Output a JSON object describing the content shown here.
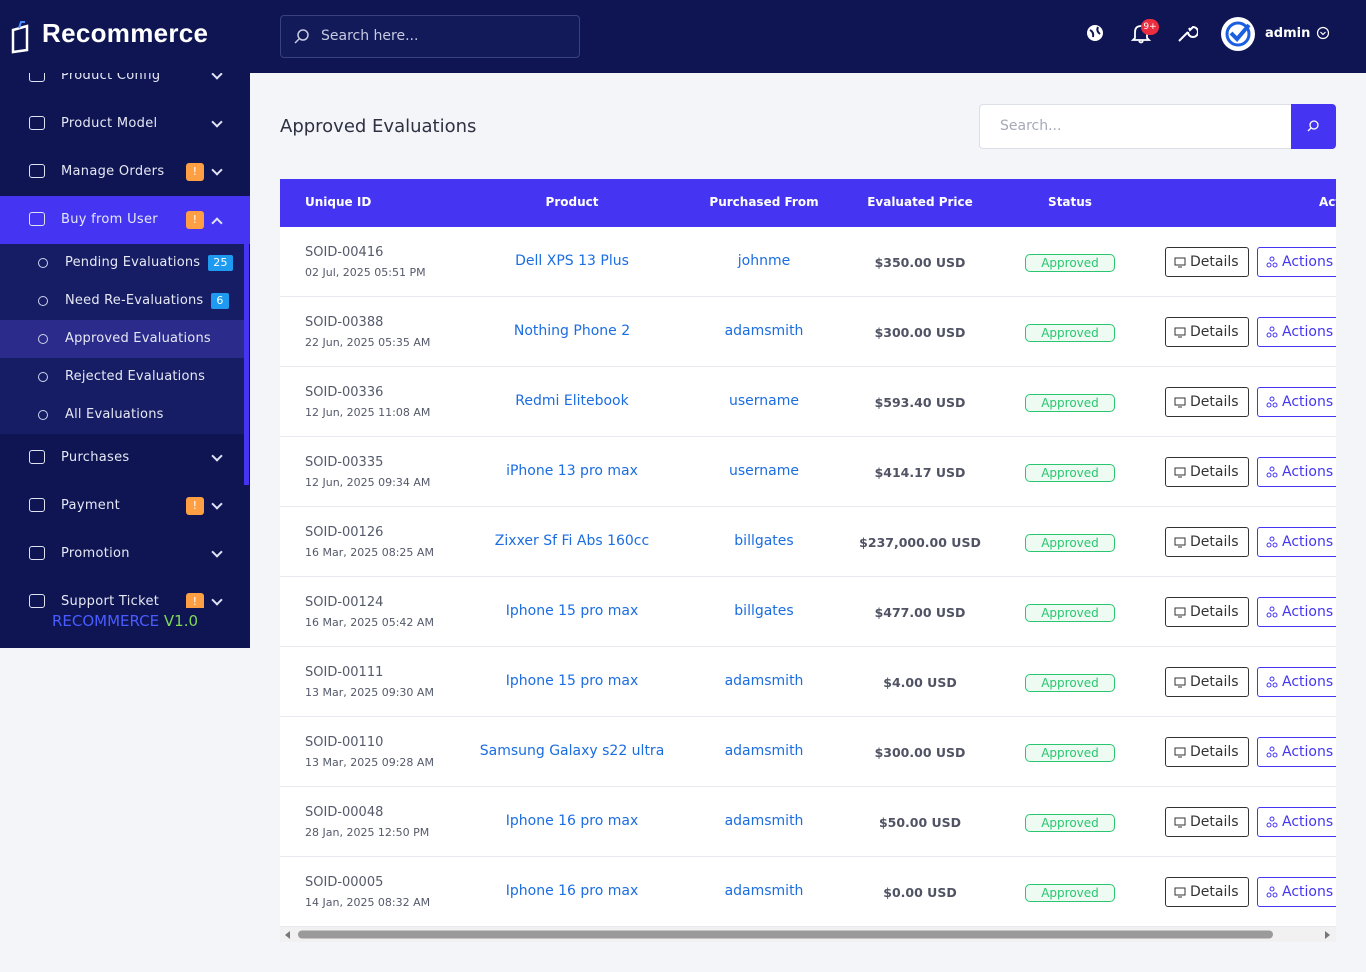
{
  "brand": "Recommerce",
  "header": {
    "search_placeholder": "Search here...",
    "notification_badge": "9+",
    "user": "admin"
  },
  "sidebar": {
    "items": [
      {
        "label": "Product Config"
      },
      {
        "label": "Product Model"
      },
      {
        "label": "Manage Orders",
        "badge": "!"
      },
      {
        "label": "Buy from User",
        "badge": "!",
        "submenu": [
          {
            "label": "Pending Evaluations",
            "count": 25
          },
          {
            "label": "Need Re-Evaluations",
            "count": 6
          },
          {
            "label": "Approved Evaluations"
          },
          {
            "label": "Rejected Evaluations"
          },
          {
            "label": "All Evaluations"
          }
        ]
      },
      {
        "label": "Purchases"
      },
      {
        "label": "Payment",
        "badge": "!"
      },
      {
        "label": "Promotion"
      },
      {
        "label": "Support Ticket",
        "badge": "!"
      }
    ],
    "footer": {
      "name": "RECOMMERCE",
      "version": "V1.0"
    }
  },
  "page": {
    "title": "Approved Evaluations",
    "search_placeholder": "Search..."
  },
  "table": {
    "columns": [
      "Unique ID",
      "Product",
      "Purchased From",
      "Evaluated Price",
      "Status",
      "Actions"
    ],
    "buttons": [
      "Details",
      "Actions"
    ],
    "rows": [
      {
        "id": "SOID-00416",
        "date": "02 Jul, 2025 05:51 PM",
        "product": "Dell XPS 13 Plus",
        "from": "johnme",
        "price": "$350.00 USD",
        "status": "Approved"
      },
      {
        "id": "SOID-00388",
        "date": "22 Jun, 2025 05:35 AM",
        "product": "Nothing Phone 2",
        "from": "adamsmith",
        "price": "$300.00 USD",
        "status": "Approved"
      },
      {
        "id": "SOID-00336",
        "date": "12 Jun, 2025 11:08 AM",
        "product": "Redmi Elitebook",
        "from": "username",
        "price": "$593.40 USD",
        "status": "Approved"
      },
      {
        "id": "SOID-00335",
        "date": "12 Jun, 2025 09:34 AM",
        "product": "iPhone 13 pro max",
        "from": "username",
        "price": "$414.17 USD",
        "status": "Approved"
      },
      {
        "id": "SOID-00126",
        "date": "16 Mar, 2025 08:25 AM",
        "product": "Zixxer Sf Fi Abs 160cc",
        "from": "billgates",
        "price": "$237,000.00 USD",
        "status": "Approved"
      },
      {
        "id": "SOID-00124",
        "date": "16 Mar, 2025 05:42 AM",
        "product": "Iphone 15 pro max",
        "from": "billgates",
        "price": "$477.00 USD",
        "status": "Approved"
      },
      {
        "id": "SOID-00111",
        "date": "13 Mar, 2025 09:30 AM",
        "product": "Iphone 15 pro max",
        "from": "adamsmith",
        "price": "$4.00 USD",
        "status": "Approved"
      },
      {
        "id": "SOID-00110",
        "date": "13 Mar, 2025 09:28 AM",
        "product": "Samsung Galaxy s22 ultra",
        "from": "adamsmith",
        "price": "$300.00 USD",
        "status": "Approved"
      },
      {
        "id": "SOID-00048",
        "date": "28 Jan, 2025 12:50 PM",
        "product": "Iphone 16 pro max",
        "from": "adamsmith",
        "price": "$50.00 USD",
        "status": "Approved"
      },
      {
        "id": "SOID-00005",
        "date": "14 Jan, 2025 08:32 AM",
        "product": "Iphone 16 pro max",
        "from": "adamsmith",
        "price": "$0.00 USD",
        "status": "Approved"
      }
    ]
  }
}
